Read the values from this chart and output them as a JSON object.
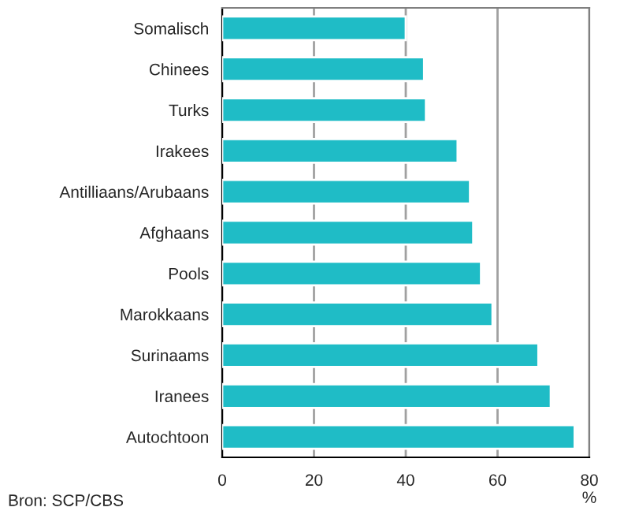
{
  "chart_data": {
    "type": "bar",
    "orientation": "horizontal",
    "xlabel": "%",
    "categories": [
      "Somalisch",
      "Chinees",
      "Turks",
      "Irakees",
      "Antilliaans/Arubaans",
      "Afghaans",
      "Pools",
      "Marokkaans",
      "Surinaams",
      "Iranees",
      "Autochtoon"
    ],
    "values": [
      40,
      44,
      44.4,
      51.3,
      54,
      54.7,
      56.4,
      58.9,
      68.9,
      71.6,
      76.8
    ],
    "color": "#1fbcc6",
    "xlim": [
      0,
      80
    ],
    "xticks": [
      0,
      20,
      40,
      60,
      80
    ],
    "grid": "x",
    "legend": false,
    "annotations": [
      "Bron: SCP/CBS"
    ]
  }
}
